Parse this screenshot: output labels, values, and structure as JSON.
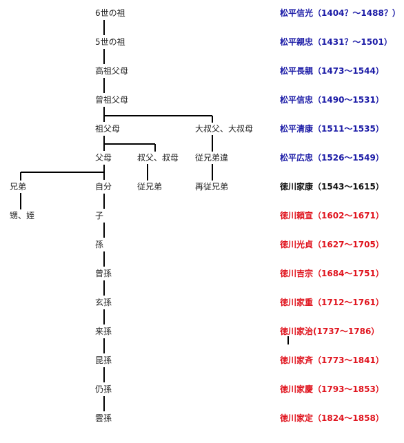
{
  "colors": {
    "early": "#1a1aa6",
    "main": "#111111",
    "later": "#e0141e",
    "line": "#000000"
  },
  "relations": [
    {
      "id": "n6",
      "label": "6世の祖"
    },
    {
      "id": "n5",
      "label": "5世の祖"
    },
    {
      "id": "kouso",
      "label": "高祖父母"
    },
    {
      "id": "sou",
      "label": "曾祖父母"
    },
    {
      "id": "so",
      "label": "祖父母"
    },
    {
      "id": "dai",
      "label": "大叔父、大叔母"
    },
    {
      "id": "fubo",
      "label": "父母"
    },
    {
      "id": "oji",
      "label": "叔父、叔母"
    },
    {
      "id": "jukei",
      "label": "従兄弟違"
    },
    {
      "id": "kyodai",
      "label": "兄弟"
    },
    {
      "id": "jibun",
      "label": "自分"
    },
    {
      "id": "itoko",
      "label": "従兄弟"
    },
    {
      "id": "saiitoko",
      "label": "再従兄弟"
    },
    {
      "id": "oi",
      "label": "甥、姪"
    },
    {
      "id": "ko",
      "label": "子"
    },
    {
      "id": "mago",
      "label": "孫"
    },
    {
      "id": "himago",
      "label": "曾孫"
    },
    {
      "id": "genson",
      "label": "玄孫"
    },
    {
      "id": "raison",
      "label": "来孫"
    },
    {
      "id": "konson",
      "label": "昆孫"
    },
    {
      "id": "jouson",
      "label": "仍孫"
    },
    {
      "id": "unson",
      "label": "雲孫"
    }
  ],
  "genealogy": [
    {
      "name": "松平信光",
      "years": "（1404？～1488？）",
      "group": "early"
    },
    {
      "name": "松平親忠",
      "years": "（1431？～1501）",
      "group": "early"
    },
    {
      "name": "松平長親",
      "years": "（1473～1544）",
      "group": "early"
    },
    {
      "name": "松平信忠",
      "years": "（1490～1531）",
      "group": "early"
    },
    {
      "name": "松平清康",
      "years": "（1511～1535）",
      "group": "early"
    },
    {
      "name": "松平広忠",
      "years": "（1526～1549）",
      "group": "early"
    },
    {
      "name": "徳川家康",
      "years": "（1543～1615）",
      "group": "main"
    },
    {
      "name": "徳川頼宣",
      "years": "（1602～1671）",
      "group": "later"
    },
    {
      "name": "徳川光貞",
      "years": "（1627～1705）",
      "group": "later"
    },
    {
      "name": "徳川吉宗",
      "years": "（1684～1751）",
      "group": "later"
    },
    {
      "name": "徳川家重",
      "years": "（1712～1761）",
      "group": "later"
    },
    {
      "name": "徳川家治",
      "years": "(1737～1786）",
      "group": "later"
    },
    {
      "name": "徳川家斉",
      "years": "（1773～1841）",
      "group": "later"
    },
    {
      "name": "徳川家慶",
      "years": "（1793～1853）",
      "group": "later"
    },
    {
      "name": "徳川家定",
      "years": "（1824～1858）",
      "group": "later"
    }
  ]
}
